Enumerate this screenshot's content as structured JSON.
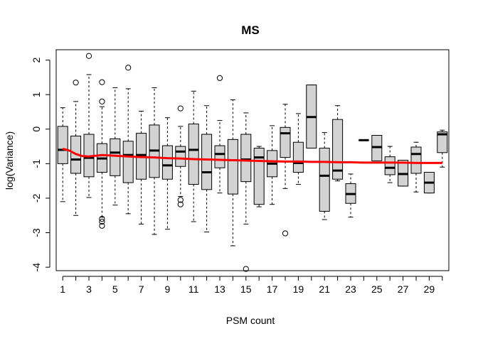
{
  "chart_data": {
    "type": "boxplot",
    "title": "MS",
    "xlabel": "PSM count",
    "ylabel": "log(Variance)",
    "xlim": [
      0.5,
      30.5
    ],
    "ylim": [
      -4.1,
      2.3
    ],
    "y_ticks": [
      -4,
      -3,
      -2,
      -1,
      0,
      1,
      2
    ],
    "x_ticks": [
      1,
      3,
      5,
      7,
      9,
      11,
      13,
      15,
      17,
      19,
      21,
      23,
      25,
      27,
      29
    ],
    "grid": false,
    "legend": "none",
    "colors": {
      "box_fill": "#d3d3d3",
      "box_stroke": "#000000",
      "trend": "#ff0000"
    },
    "boxes": [
      {
        "x": 1,
        "lw": -2.1,
        "q1": -1.0,
        "med": -0.6,
        "q3": 0.08,
        "uw": 0.62,
        "out": []
      },
      {
        "x": 2,
        "lw": -2.5,
        "q1": -1.28,
        "med": -0.88,
        "q3": -0.2,
        "uw": 0.8,
        "out": [
          1.35
        ]
      },
      {
        "x": 3,
        "lw": -1.98,
        "q1": -1.38,
        "med": -0.83,
        "q3": -0.15,
        "uw": 1.58,
        "out": [
          2.12
        ]
      },
      {
        "x": 4,
        "lw": -2.55,
        "q1": -1.25,
        "med": -0.85,
        "q3": -0.42,
        "uw": 0.65,
        "out": [
          1.36,
          0.8,
          -2.6,
          -2.68,
          -2.8
        ]
      },
      {
        "x": 5,
        "lw": -2.2,
        "q1": -1.35,
        "med": -0.68,
        "q3": -0.28,
        "uw": 1.2,
        "out": []
      },
      {
        "x": 6,
        "lw": -2.45,
        "q1": -1.55,
        "med": -0.75,
        "q3": -0.35,
        "uw": 1.17,
        "out": [
          1.78
        ]
      },
      {
        "x": 7,
        "lw": -2.75,
        "q1": -1.45,
        "med": -0.75,
        "q3": -0.12,
        "uw": 0.52,
        "out": []
      },
      {
        "x": 8,
        "lw": -3.05,
        "q1": -1.4,
        "med": -0.62,
        "q3": 0.12,
        "uw": 1.2,
        "out": []
      },
      {
        "x": 9,
        "lw": -2.9,
        "q1": -1.45,
        "med": -1.05,
        "q3": -0.48,
        "uw": 0.33,
        "out": []
      },
      {
        "x": 10,
        "lw": -1.95,
        "q1": -1.08,
        "med": -0.65,
        "q3": -0.5,
        "uw": 0.08,
        "out": [
          0.6,
          -2.05,
          -2.18
        ]
      },
      {
        "x": 11,
        "lw": -2.68,
        "q1": -1.6,
        "med": -0.6,
        "q3": 0.15,
        "uw": 1.1,
        "out": []
      },
      {
        "x": 12,
        "lw": -2.98,
        "q1": -1.75,
        "med": -1.25,
        "q3": -0.15,
        "uw": 0.68,
        "out": []
      },
      {
        "x": 13,
        "lw": -1.85,
        "q1": -1.12,
        "med": -0.72,
        "q3": -0.48,
        "uw": 0.25,
        "out": [
          1.48
        ]
      },
      {
        "x": 14,
        "lw": -3.38,
        "q1": -1.88,
        "med": -0.9,
        "q3": -0.3,
        "uw": 0.85,
        "out": []
      },
      {
        "x": 15,
        "lw": -2.75,
        "q1": -1.52,
        "med": -0.88,
        "q3": -0.15,
        "uw": 0.47,
        "out": [
          -4.05
        ]
      },
      {
        "x": 16,
        "lw": -2.25,
        "q1": -2.18,
        "med": -0.82,
        "q3": -0.55,
        "uw": -0.5,
        "out": []
      },
      {
        "x": 17,
        "lw": -2.18,
        "q1": -1.38,
        "med": -1.0,
        "q3": -0.62,
        "uw": 0.1,
        "out": []
      },
      {
        "x": 18,
        "lw": -1.72,
        "q1": -0.82,
        "med": -0.12,
        "q3": 0.05,
        "uw": 0.72,
        "out": [
          -3.02
        ]
      },
      {
        "x": 19,
        "lw": -1.6,
        "q1": -1.25,
        "med": -0.98,
        "q3": -0.38,
        "uw": 0.45,
        "out": []
      },
      {
        "x": 20,
        "lw": -0.55,
        "q1": -0.55,
        "med": 0.35,
        "q3": 1.28,
        "uw": 1.28,
        "out": []
      },
      {
        "x": 21,
        "lw": -2.62,
        "q1": -2.38,
        "med": -1.35,
        "q3": -0.55,
        "uw": -0.1,
        "out": []
      },
      {
        "x": 22,
        "lw": -1.5,
        "q1": -1.45,
        "med": -1.2,
        "q3": 0.28,
        "uw": 0.68,
        "out": []
      },
      {
        "x": 23,
        "lw": -2.55,
        "q1": -2.15,
        "med": -1.88,
        "q3": -1.58,
        "uw": -1.3,
        "out": []
      },
      {
        "x": 24,
        "lw": -0.32,
        "q1": -0.32,
        "med": -0.32,
        "q3": -0.32,
        "uw": -0.32,
        "out": []
      },
      {
        "x": 25,
        "lw": -0.92,
        "q1": -0.92,
        "med": -0.52,
        "q3": -0.18,
        "uw": -0.18,
        "out": []
      },
      {
        "x": 26,
        "lw": -1.55,
        "q1": -1.32,
        "med": -1.12,
        "q3": -0.8,
        "uw": -0.5,
        "out": []
      },
      {
        "x": 27,
        "lw": -1.65,
        "q1": -1.65,
        "med": -1.3,
        "q3": -0.9,
        "uw": -0.9,
        "out": []
      },
      {
        "x": 28,
        "lw": -1.82,
        "q1": -1.28,
        "med": -0.72,
        "q3": -0.52,
        "uw": -0.38,
        "out": []
      },
      {
        "x": 29,
        "lw": -1.85,
        "q1": -1.85,
        "med": -1.55,
        "q3": -1.25,
        "uw": -1.25,
        "out": []
      },
      {
        "x": 30,
        "lw": -1.1,
        "q1": -0.68,
        "med": -0.15,
        "q3": -0.08,
        "uw": -0.03,
        "out": []
      }
    ],
    "trend": {
      "x": [
        1,
        1.5,
        2,
        2.5,
        3,
        3.5,
        4,
        5,
        6,
        7,
        8,
        9,
        10,
        11,
        12,
        13,
        14,
        15,
        16,
        17,
        18,
        19,
        20,
        21,
        22,
        23,
        24,
        25,
        26,
        27,
        28,
        29,
        30
      ],
      "y": [
        -0.57,
        -0.62,
        -0.72,
        -0.78,
        -0.79,
        -0.77,
        -0.75,
        -0.77,
        -0.79,
        -0.81,
        -0.82,
        -0.84,
        -0.85,
        -0.87,
        -0.88,
        -0.89,
        -0.9,
        -0.91,
        -0.92,
        -0.93,
        -0.94,
        -0.94,
        -0.95,
        -0.95,
        -0.96,
        -0.96,
        -0.97,
        -0.97,
        -0.97,
        -0.97,
        -0.98,
        -0.98,
        -0.98
      ]
    }
  }
}
